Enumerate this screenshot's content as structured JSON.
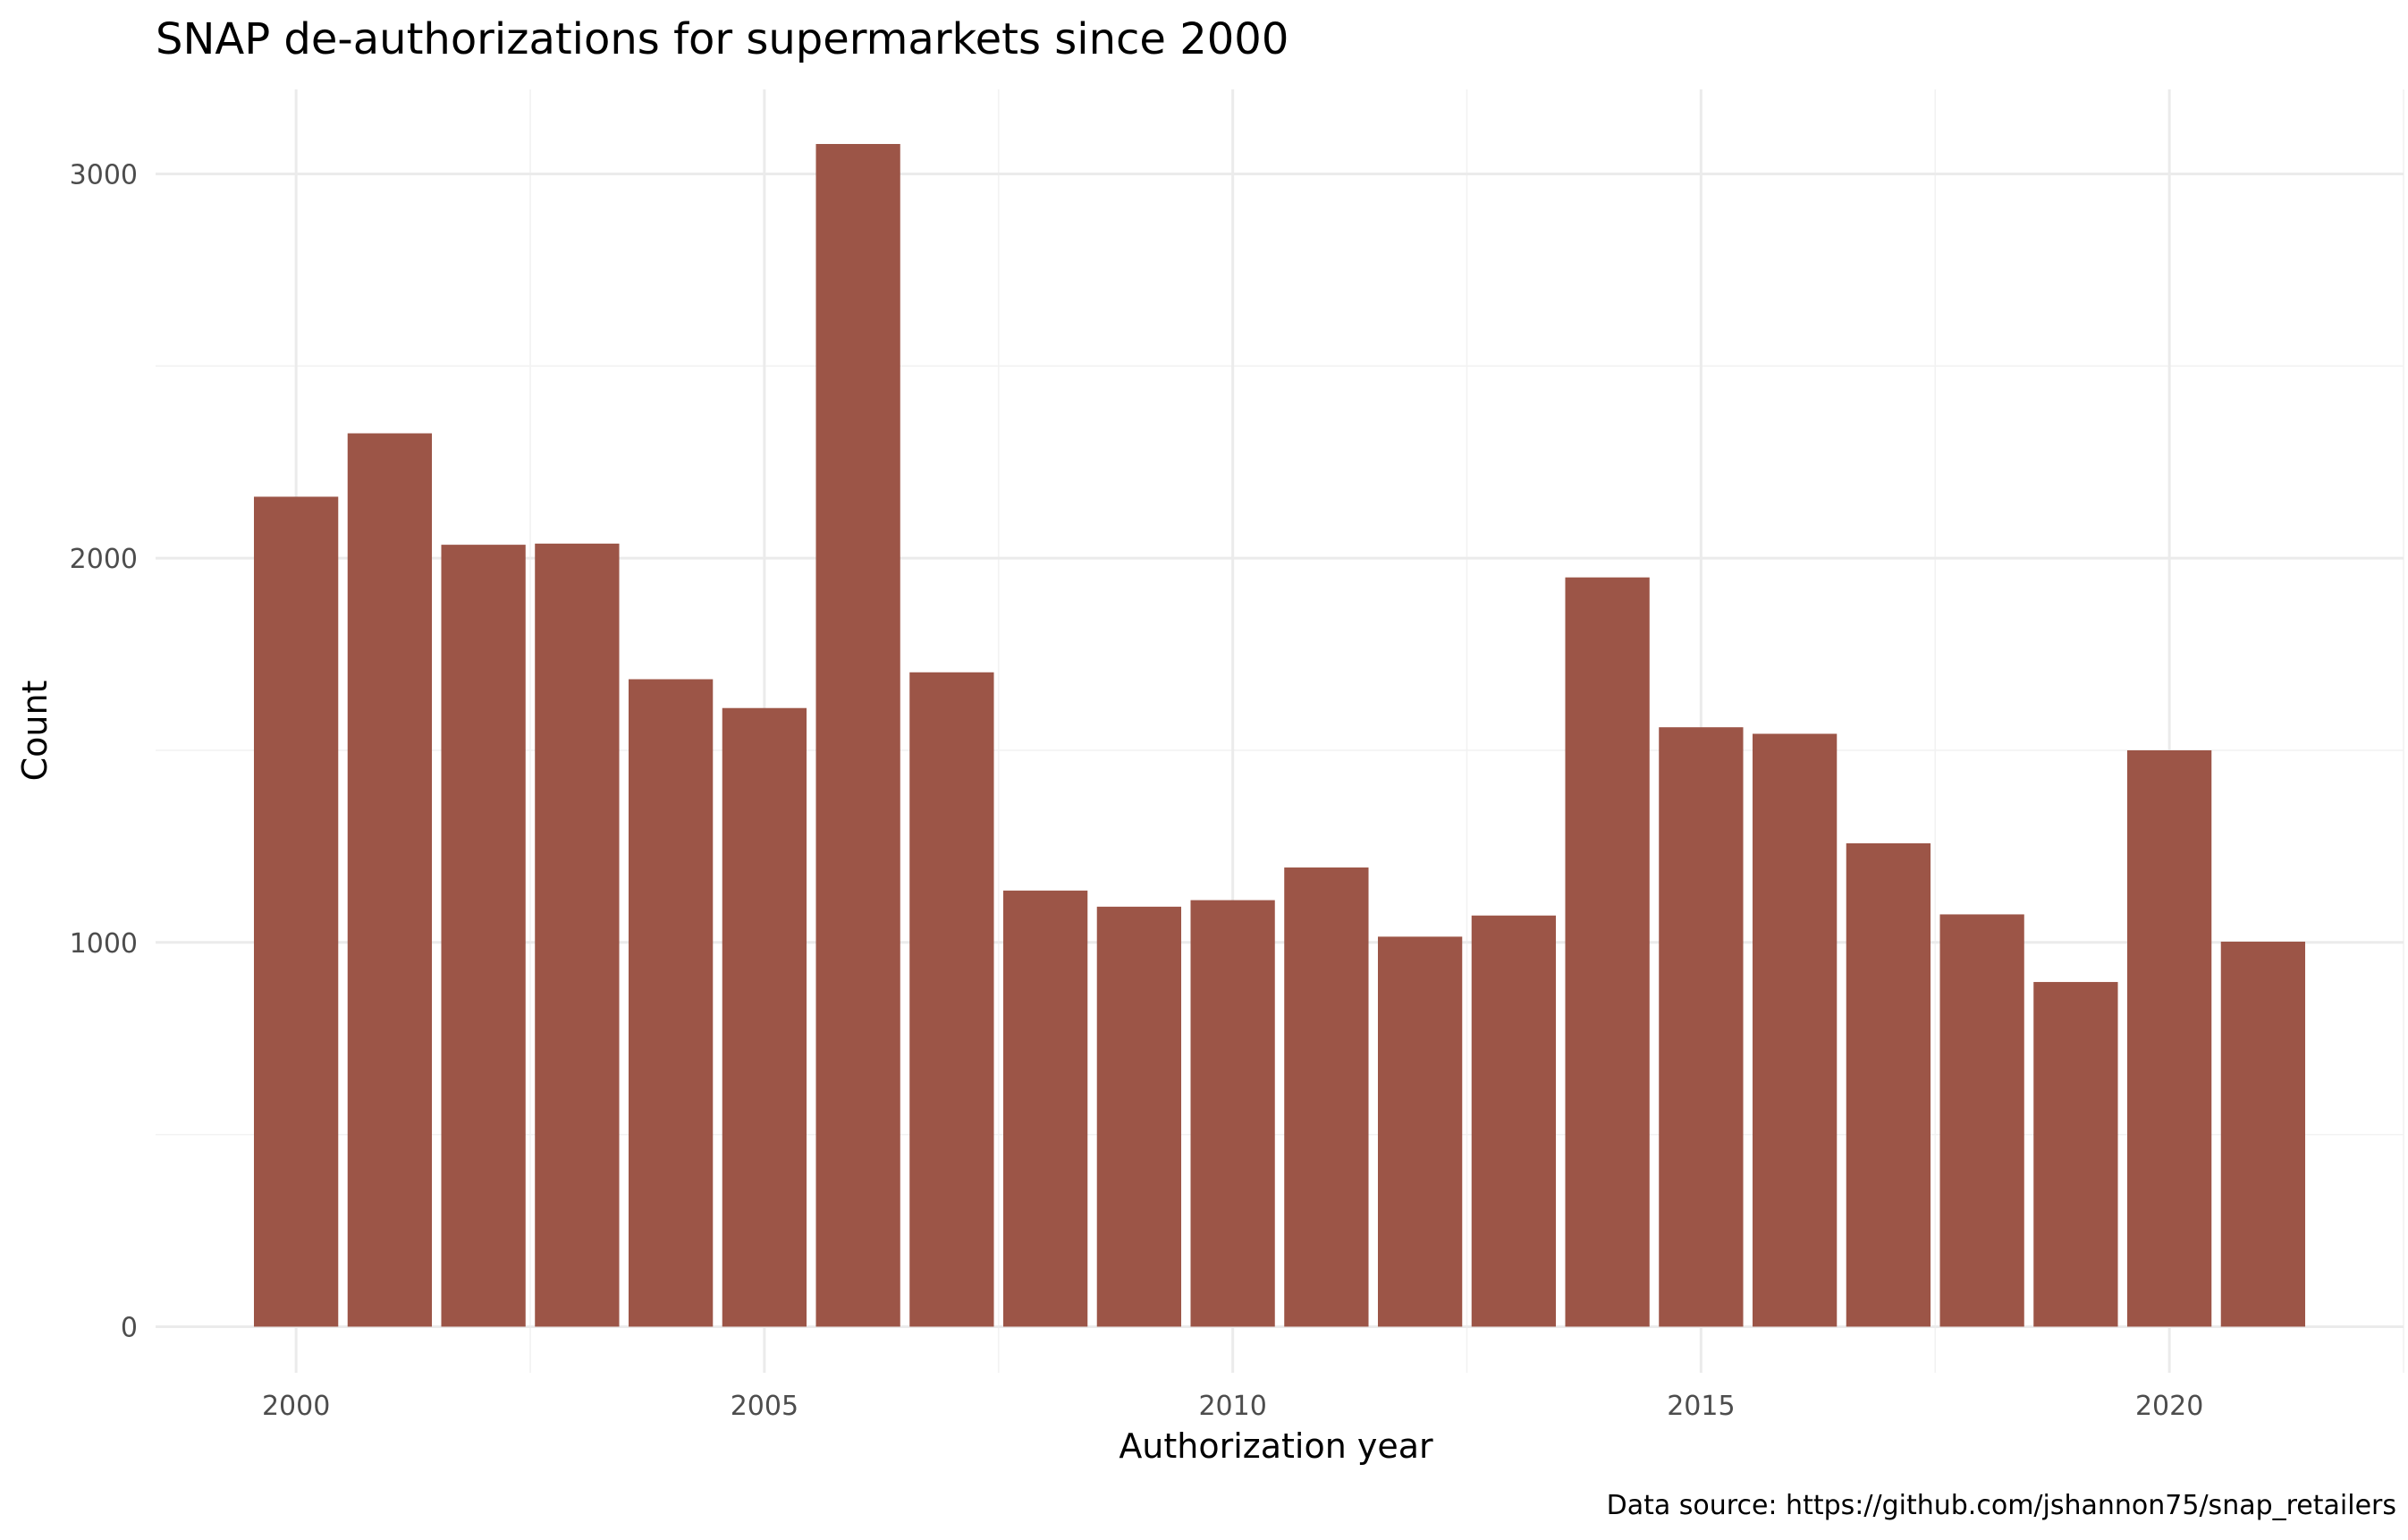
{
  "chart_data": {
    "type": "bar",
    "title": "SNAP de-authorizations for supermarkets since 2000",
    "xlabel": "Authorization year",
    "ylabel": "Count",
    "caption": "Data source: https://github.com/jshannon75/snap_retailers",
    "x": [
      2000,
      2001,
      2002,
      2003,
      2004,
      2005,
      2006,
      2007,
      2008,
      2009,
      2010,
      2011,
      2012,
      2013,
      2014,
      2015,
      2016,
      2017,
      2018,
      2019,
      2020,
      2021
    ],
    "values": [
      2160,
      2325,
      2035,
      2038,
      1685,
      1610,
      3078,
      1703,
      1135,
      1093,
      1110,
      1195,
      1015,
      1070,
      1950,
      1560,
      1543,
      1258,
      1073,
      897,
      1500,
      1002
    ],
    "xlim": [
      1998.5,
      2022.5
    ],
    "ylim": [
      -120,
      3220
    ],
    "x_ticks": [
      2000,
      2005,
      2010,
      2015,
      2020
    ],
    "y_ticks": [
      0,
      1000,
      2000,
      3000
    ],
    "x_tick_labels": [
      "2000",
      "2005",
      "2010",
      "2015",
      "2020"
    ],
    "y_tick_labels": [
      "0",
      "1000",
      "2000",
      "3000"
    ],
    "bar_color": "#9c5547",
    "grid": true,
    "legend": "none"
  }
}
